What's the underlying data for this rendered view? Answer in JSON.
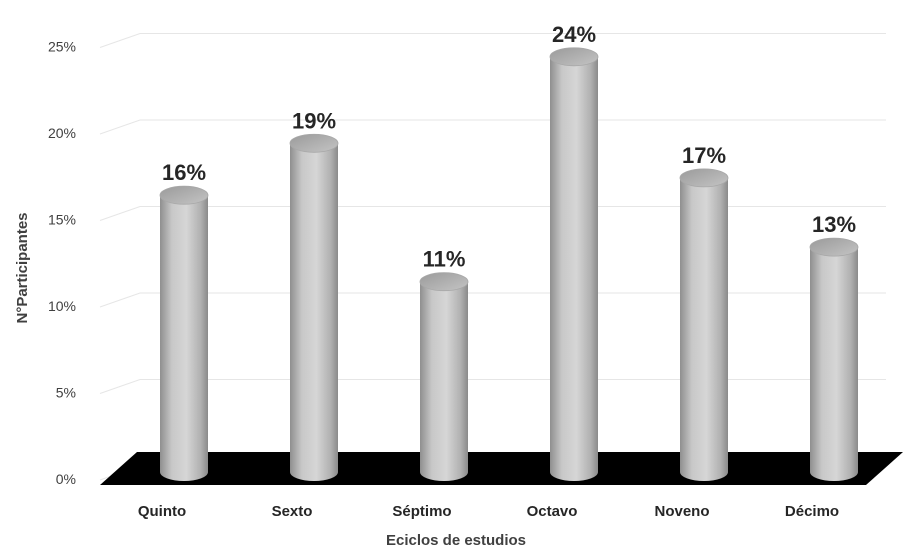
{
  "chart_data": {
    "type": "bar",
    "categories": [
      "Quinto",
      "Sexto",
      "Séptimo",
      "Octavo",
      "Noveno",
      "Décimo"
    ],
    "values": [
      16,
      19,
      11,
      24,
      17,
      13
    ],
    "data_labels": [
      "16%",
      "19%",
      "11%",
      "24%",
      "17%",
      "13%"
    ],
    "ytick_labels": [
      "0%",
      "5%",
      "10%",
      "15%",
      "20%",
      "25%"
    ],
    "ylim": [
      0,
      25
    ],
    "xlabel": "Eciclos de estudios",
    "ylabel": "N°Participantes",
    "grid": true,
    "legend": "none",
    "colors": {
      "bar": "#b4b4b4",
      "floor": "#000000",
      "grid": "#e6e6e6",
      "text": "#262626"
    }
  }
}
